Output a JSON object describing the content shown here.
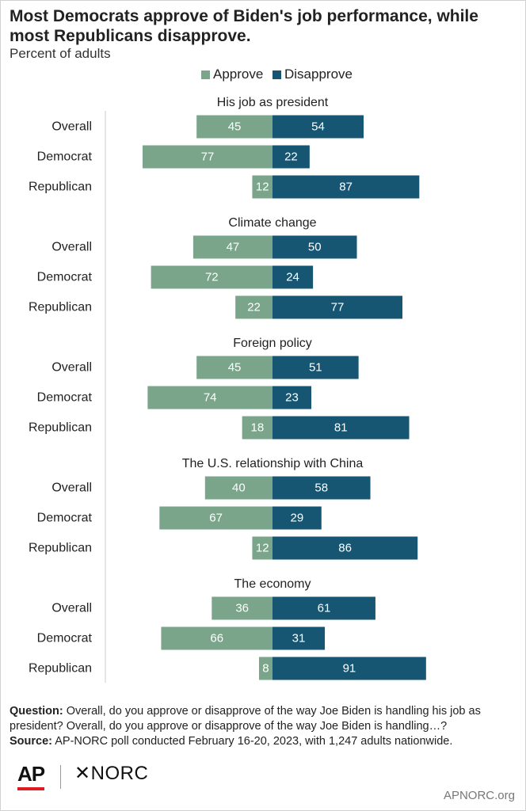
{
  "title": "Most Democrats approve of Biden's job performance, while most Republicans disapprove.",
  "subtitle": "Percent of adults",
  "legend": {
    "approve": "Approve",
    "disapprove": "Disapprove"
  },
  "colors": {
    "approve": "#7aa58a",
    "disapprove": "#175673",
    "axis": "#cccccc"
  },
  "chart_data": {
    "type": "bar",
    "orientation": "horizontal-diverging",
    "categories": [
      "Overall",
      "Democrat",
      "Republican"
    ],
    "series_names": [
      "Approve",
      "Disapprove"
    ],
    "panels": [
      {
        "title": "His job as president",
        "approve": [
          45,
          77,
          12
        ],
        "disapprove": [
          54,
          22,
          87
        ]
      },
      {
        "title": "Climate change",
        "approve": [
          47,
          72,
          22
        ],
        "disapprove": [
          50,
          24,
          77
        ]
      },
      {
        "title": "Foreign policy",
        "approve": [
          45,
          74,
          18
        ],
        "disapprove": [
          51,
          23,
          81
        ]
      },
      {
        "title": "The U.S. relationship with China",
        "approve": [
          40,
          67,
          12
        ],
        "disapprove": [
          58,
          29,
          86
        ]
      },
      {
        "title": "The economy",
        "approve": [
          36,
          66,
          8
        ],
        "disapprove": [
          61,
          31,
          91
        ]
      }
    ]
  },
  "footer": {
    "question_label": "Question:",
    "question_text": " Overall, do you approve or disapprove of the way Joe Biden is handling his job as president? Overall, do you approve or disapprove of the way Joe Biden is handling…?",
    "source_label": "Source:",
    "source_text": " AP-NORC poll conducted February 16-20, 2023, with 1,247 adults nationwide."
  },
  "logos": {
    "ap": "AP",
    "norc": "✕NORC"
  },
  "site": "APNORC.org"
}
